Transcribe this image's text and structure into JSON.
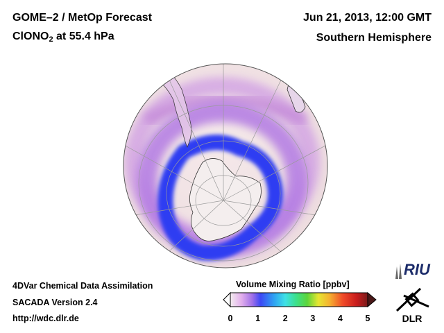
{
  "header": {
    "title": "GOME–2 / MetOp Forecast",
    "species_prefix": "ClONO",
    "species_subscript": "2",
    "species_suffix": " at 55.4 hPa",
    "date": "Jun 21, 2013, 12:00 GMT",
    "region": "Southern Hemisphere"
  },
  "footer": {
    "line1": "4DVar Chemical Data Assimilation",
    "line2": "SACADA Version 2.4",
    "line3": "http://wdc.dlr.de"
  },
  "colorbar": {
    "title": "Volume Mixing Ratio [ppbv]",
    "ticks": [
      "0",
      "1",
      "2",
      "3",
      "4",
      "5"
    ],
    "min": 0,
    "max": 5
  },
  "logos": {
    "riu": "RIU",
    "dlr": "DLR"
  },
  "colors": {
    "ocean_background": "#f2e4e6",
    "low_band": "#3a3ef0",
    "mid_band": "#c9a6e6",
    "land_fill": "#f4eeee",
    "graticule": "#9a9a9a"
  }
}
